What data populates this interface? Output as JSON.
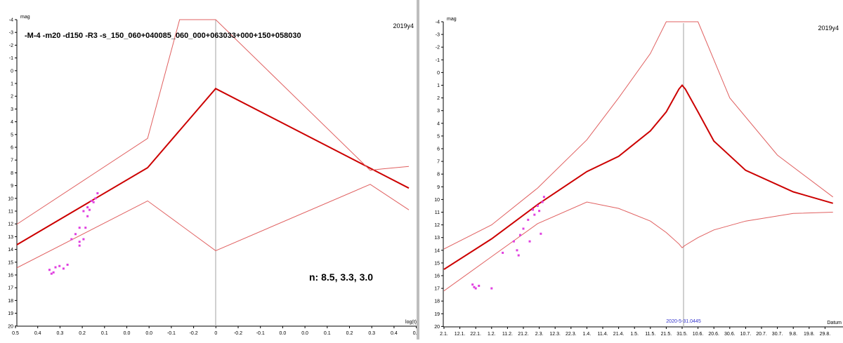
{
  "chart_data": [
    {
      "type": "line",
      "ylabel": "mag",
      "xlabel": "log(t)",
      "tag": "2019y4",
      "params": "-M-4 -m20 -d150 -R3  -s_150_060+040085_060_000+063033+000+150+058030",
      "note": "n: 8.5, 3.3, 3.0",
      "y_ticks": [
        "-4",
        "-3",
        "-2",
        "-1",
        "0",
        "1",
        "2",
        "3",
        "4",
        "5",
        "6",
        "7",
        "8",
        "9",
        "10",
        "11",
        "12",
        "13",
        "14",
        "15",
        "16",
        "17",
        "18",
        "19",
        "20"
      ],
      "x_ticks": [
        "0.5",
        "0.4",
        "0.3",
        "0.2",
        "0.1",
        "0.0",
        "0.0",
        "-0.1",
        "-0.2",
        "0",
        "-0.2",
        "-0.1",
        "0.0",
        "0.0",
        "0.1",
        "0.2",
        "0.3",
        "0.4",
        "0.5"
      ],
      "ylim": [
        -4,
        20
      ],
      "y_inverted": true,
      "series": [
        {
          "role": "model",
          "color": "#cc0000",
          "x": [
            0.5,
            0.17,
            0.0,
            -0.5
          ],
          "y": [
            13.7,
            7.6,
            1.4,
            9.2
          ]
        },
        {
          "role": "upper-envelope",
          "color": "#e06060",
          "x": [
            0.5,
            0.17,
            0.09,
            0.0,
            -0.4,
            -0.43,
            -0.5
          ],
          "y": [
            12.1,
            5.3,
            -4.0,
            -4.0,
            7.8,
            7.7,
            7.5
          ]
        },
        {
          "role": "lower-envelope",
          "color": "#e06060",
          "x": [
            0.5,
            0.17,
            0.0,
            -0.4,
            -0.5
          ],
          "y": [
            15.5,
            10.2,
            14.1,
            8.9,
            10.9
          ]
        },
        {
          "role": "observations",
          "color": "#e040e0",
          "x": [
            0.295,
            0.3,
            0.31,
            0.305,
            0.32,
            0.315,
            0.33,
            0.32,
            0.34,
            0.325,
            0.35,
            0.33,
            0.36,
            0.34,
            0.34,
            0.37,
            0.38,
            0.4,
            0.405,
            0.41,
            0.415,
            0.39
          ],
          "y": [
            9.6,
            10.0,
            10.2,
            10.3,
            10.7,
            10.9,
            11.0,
            11.4,
            12.3,
            12.3,
            12.8,
            13.2,
            13.2,
            13.4,
            13.7,
            15.2,
            15.5,
            15.4,
            15.8,
            15.9,
            15.6,
            15.3
          ]
        }
      ]
    },
    {
      "type": "line",
      "ylabel": "mag",
      "xlabel": "Datum",
      "tag": "2019y4",
      "marker_label": "2020-5-31.0445",
      "y_ticks": [
        "-4",
        "-3",
        "-2",
        "-1",
        "0",
        "1",
        "2",
        "3",
        "4",
        "5",
        "6",
        "7",
        "8",
        "9",
        "10",
        "11",
        "12",
        "13",
        "14",
        "15",
        "16",
        "17",
        "18",
        "19",
        "20"
      ],
      "x_ticks": [
        "2.1.",
        "12.1.",
        "22.1.",
        "1.2.",
        "11.2.",
        "21.2.",
        "2.3.",
        "12.3.",
        "22.3.",
        "1.4.",
        "11.4.",
        "21.4.",
        "1.5.",
        "11.5.",
        "21.5.",
        "31.5.",
        "10.6.",
        "20.6.",
        "30.6.",
        "10.7.",
        "20.7.",
        "30.7.",
        "9.8.",
        "19.8.",
        "29.8."
      ],
      "ylim": [
        -4,
        20
      ],
      "y_inverted": true,
      "series": [
        {
          "role": "model",
          "color": "#cc0000",
          "x": [
            "2020-01-02",
            "2020-02-01",
            "2020-03-01",
            "2020-04-01",
            "2020-04-21",
            "2020-05-11",
            "2020-05-21",
            "2020-05-29",
            "2020-05-31",
            "2020-06-02",
            "2020-06-10",
            "2020-06-20",
            "2020-07-10",
            "2020-08-09",
            "2020-09-03"
          ],
          "y": [
            15.5,
            13.1,
            10.4,
            7.8,
            6.6,
            4.6,
            3.1,
            1.3,
            1.0,
            1.3,
            3.1,
            5.4,
            7.7,
            9.4,
            10.3
          ]
        },
        {
          "role": "upper-envelope",
          "color": "#e06060",
          "x": [
            "2020-01-02",
            "2020-02-01",
            "2020-03-01",
            "2020-04-01",
            "2020-04-21",
            "2020-05-11",
            "2020-05-21",
            "2020-06-10",
            "2020-06-30",
            "2020-07-30",
            "2020-09-03"
          ],
          "y": [
            13.9,
            12.0,
            9.1,
            5.3,
            2.0,
            -1.5,
            -4.0,
            -4.0,
            2.0,
            6.5,
            9.8
          ]
        },
        {
          "role": "lower-envelope",
          "color": "#e06060",
          "x": [
            "2020-01-02",
            "2020-02-01",
            "2020-03-01",
            "2020-04-01",
            "2020-04-21",
            "2020-05-11",
            "2020-05-21",
            "2020-05-29",
            "2020-05-31",
            "2020-06-02",
            "2020-06-10",
            "2020-06-20",
            "2020-07-10",
            "2020-08-09",
            "2020-09-03"
          ],
          "y": [
            17.2,
            14.5,
            11.9,
            10.2,
            10.7,
            11.7,
            12.6,
            13.5,
            13.8,
            13.6,
            13.0,
            12.4,
            11.7,
            11.1,
            11.0
          ]
        },
        {
          "role": "observations",
          "color": "#e040e0",
          "x": [
            "2020-01-20",
            "2020-01-21",
            "2020-01-22",
            "2020-01-24",
            "2020-02-01",
            "2020-02-08",
            "2020-02-15",
            "2020-02-17",
            "2020-02-18",
            "2020-02-19",
            "2020-02-21",
            "2020-02-24",
            "2020-02-25",
            "2020-02-27",
            "2020-02-28",
            "2020-03-01",
            "2020-03-03",
            "2020-03-04",
            "2020-03-05",
            "2020-03-02"
          ],
          "y": [
            16.7,
            16.9,
            17.0,
            16.8,
            17.0,
            14.2,
            13.3,
            14.0,
            14.4,
            12.8,
            12.3,
            11.6,
            13.3,
            10.8,
            11.2,
            10.5,
            12.7,
            10.2,
            9.8,
            10.9
          ]
        }
      ]
    }
  ]
}
